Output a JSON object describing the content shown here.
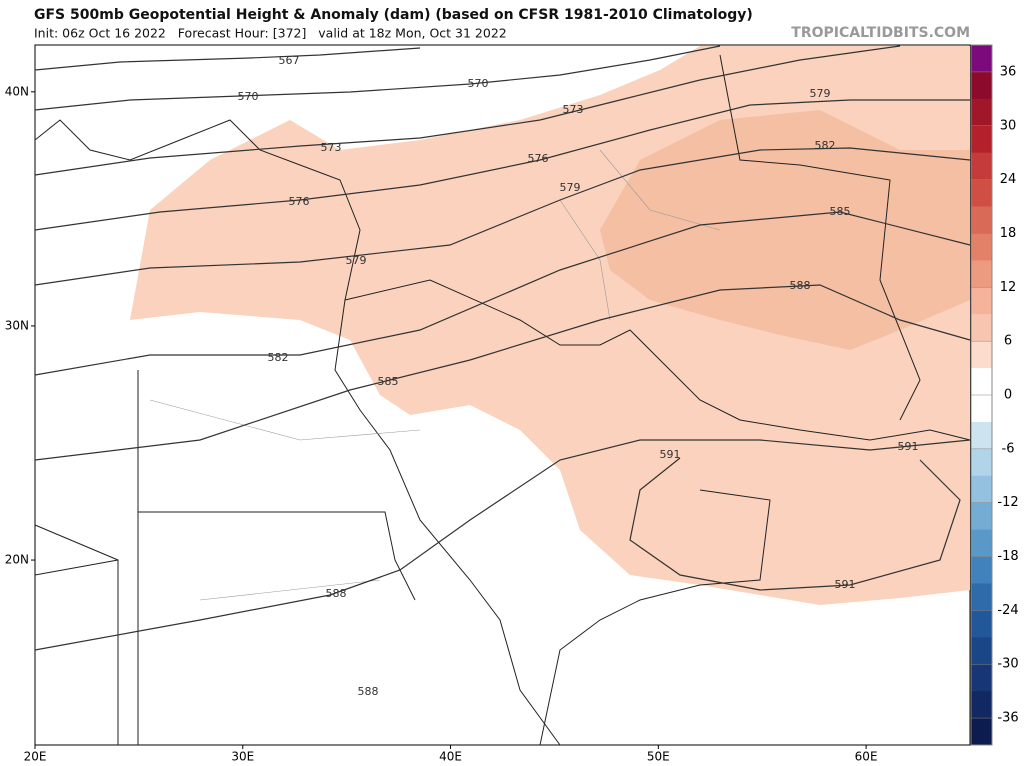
{
  "header": {
    "title": "GFS 500mb Geopotential Height & Anomaly (dam) (based on CFSR 1981-2010 Climatology)",
    "subtitle": "Init: 06z Oct 16 2022   Forecast Hour: [372]   valid at 18z Mon, Oct 31 2022",
    "site": "TROPICALTIDBITS.COM"
  },
  "map": {
    "lonlim": [
      20,
      65
    ],
    "latlim": [
      12.1,
      42
    ],
    "lon_ticks": [
      {
        "value": 20,
        "label": "20E"
      },
      {
        "value": 30,
        "label": "30E"
      },
      {
        "value": 40,
        "label": "40E"
      },
      {
        "value": 50,
        "label": "50E"
      },
      {
        "value": 60,
        "label": "60E"
      }
    ],
    "lat_ticks": [
      {
        "value": 40,
        "label": "40N"
      },
      {
        "value": 30,
        "label": "30N"
      },
      {
        "value": 20,
        "label": "20N"
      }
    ],
    "contour_labels": [
      "567",
      "570",
      "570",
      "573",
      "573",
      "576",
      "576",
      "579",
      "579",
      "579",
      "582",
      "582",
      "585",
      "585",
      "588",
      "591",
      "591",
      "591",
      "588",
      "588"
    ]
  },
  "colorbar": {
    "lim": [
      -39,
      39
    ],
    "ticks": [
      36,
      30,
      24,
      18,
      12,
      6,
      0,
      -6,
      -12,
      -18,
      -24,
      -30,
      -36
    ],
    "colors": [
      "#7d0a7d",
      "#8c0a2c",
      "#a01729",
      "#b4202c",
      "#c53a3a",
      "#d04f45",
      "#d96a58",
      "#e38068",
      "#ec9a80",
      "#f4b39a",
      "#f8c6b0",
      "#fbdccd",
      "#ffffff",
      "#ffffff",
      "#cde3ef",
      "#b2d4e8",
      "#93c1df",
      "#74acd3",
      "#5a98c8",
      "#4282bc",
      "#2f6bab",
      "#22579a",
      "#1a4688",
      "#163676",
      "#122862",
      "#0d1c4e"
    ]
  }
}
